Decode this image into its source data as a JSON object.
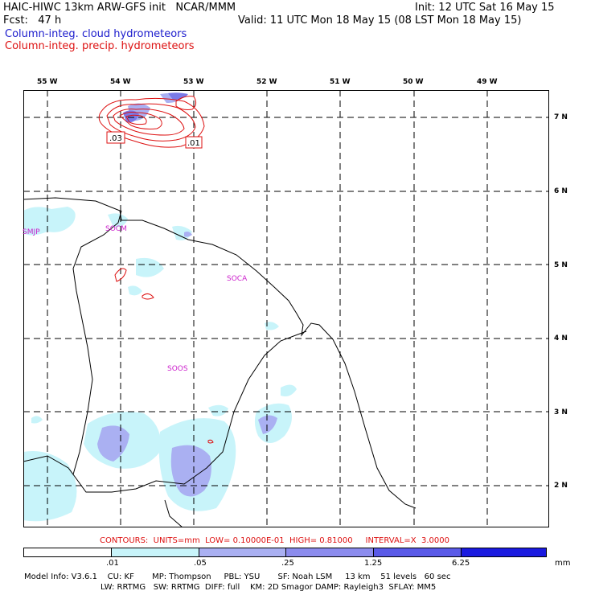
{
  "header": {
    "title": "HAIC-HIWC 13km ARW-GFS init   NCAR/MMM",
    "fcst": "Fcst:   47 h",
    "init": "Init: 12 UTC Sat 16 May 15",
    "valid": "Valid: 11 UTC Mon 18 May 15 (08 LST Mon 18 May 15)",
    "legend_cloud": "Column-integ. cloud hydrometeors",
    "legend_precip": "Column-integ. precip. hydrometeors"
  },
  "map": {
    "lon_labels": [
      "55 W",
      "54 W",
      "53 W",
      "52 W",
      "51 W",
      "50 W",
      "49 W"
    ],
    "lat_labels": [
      "7 N",
      "6 N",
      "5 N",
      "4 N",
      "3 N",
      "2 N"
    ],
    "stations": [
      "SMJP",
      "SOCM",
      "SOCA",
      "SOOS"
    ],
    "contour_labels": [
      ".03",
      ".01"
    ],
    "colors": {
      "cloud_light": "#c8f4fa",
      "cloud_mid": "#aab0f2",
      "cloud_dark": "#6a6ae6",
      "precip": "#dd1111",
      "station": "#cc22cc"
    }
  },
  "contours_info": "CONTOURS:  UNITS=mm  LOW= 0.10000E-01  HIGH= 0.81000     INTERVAL=X  3.0000",
  "colorbar": {
    "ticks": [
      ".01",
      ".05",
      ".25",
      "1.25",
      "6.25"
    ],
    "unit": "mm",
    "colors": [
      "#ffffff",
      "#c8f4fa",
      "#aab0f2",
      "#8c8cee",
      "#5a5ae8",
      "#1a1ae0"
    ]
  },
  "model_info": {
    "line1": "Model Info: V3.6.1    CU: KF       MP: Thompson     PBL: YSU       SF: Noah LSM     13 km    51 levels   60 sec",
    "line2": "LW: RRTMG   SW: RRTMG  DIFF: full    KM: 2D Smagor DAMP: Rayleigh3  SFLAY: MM5"
  }
}
